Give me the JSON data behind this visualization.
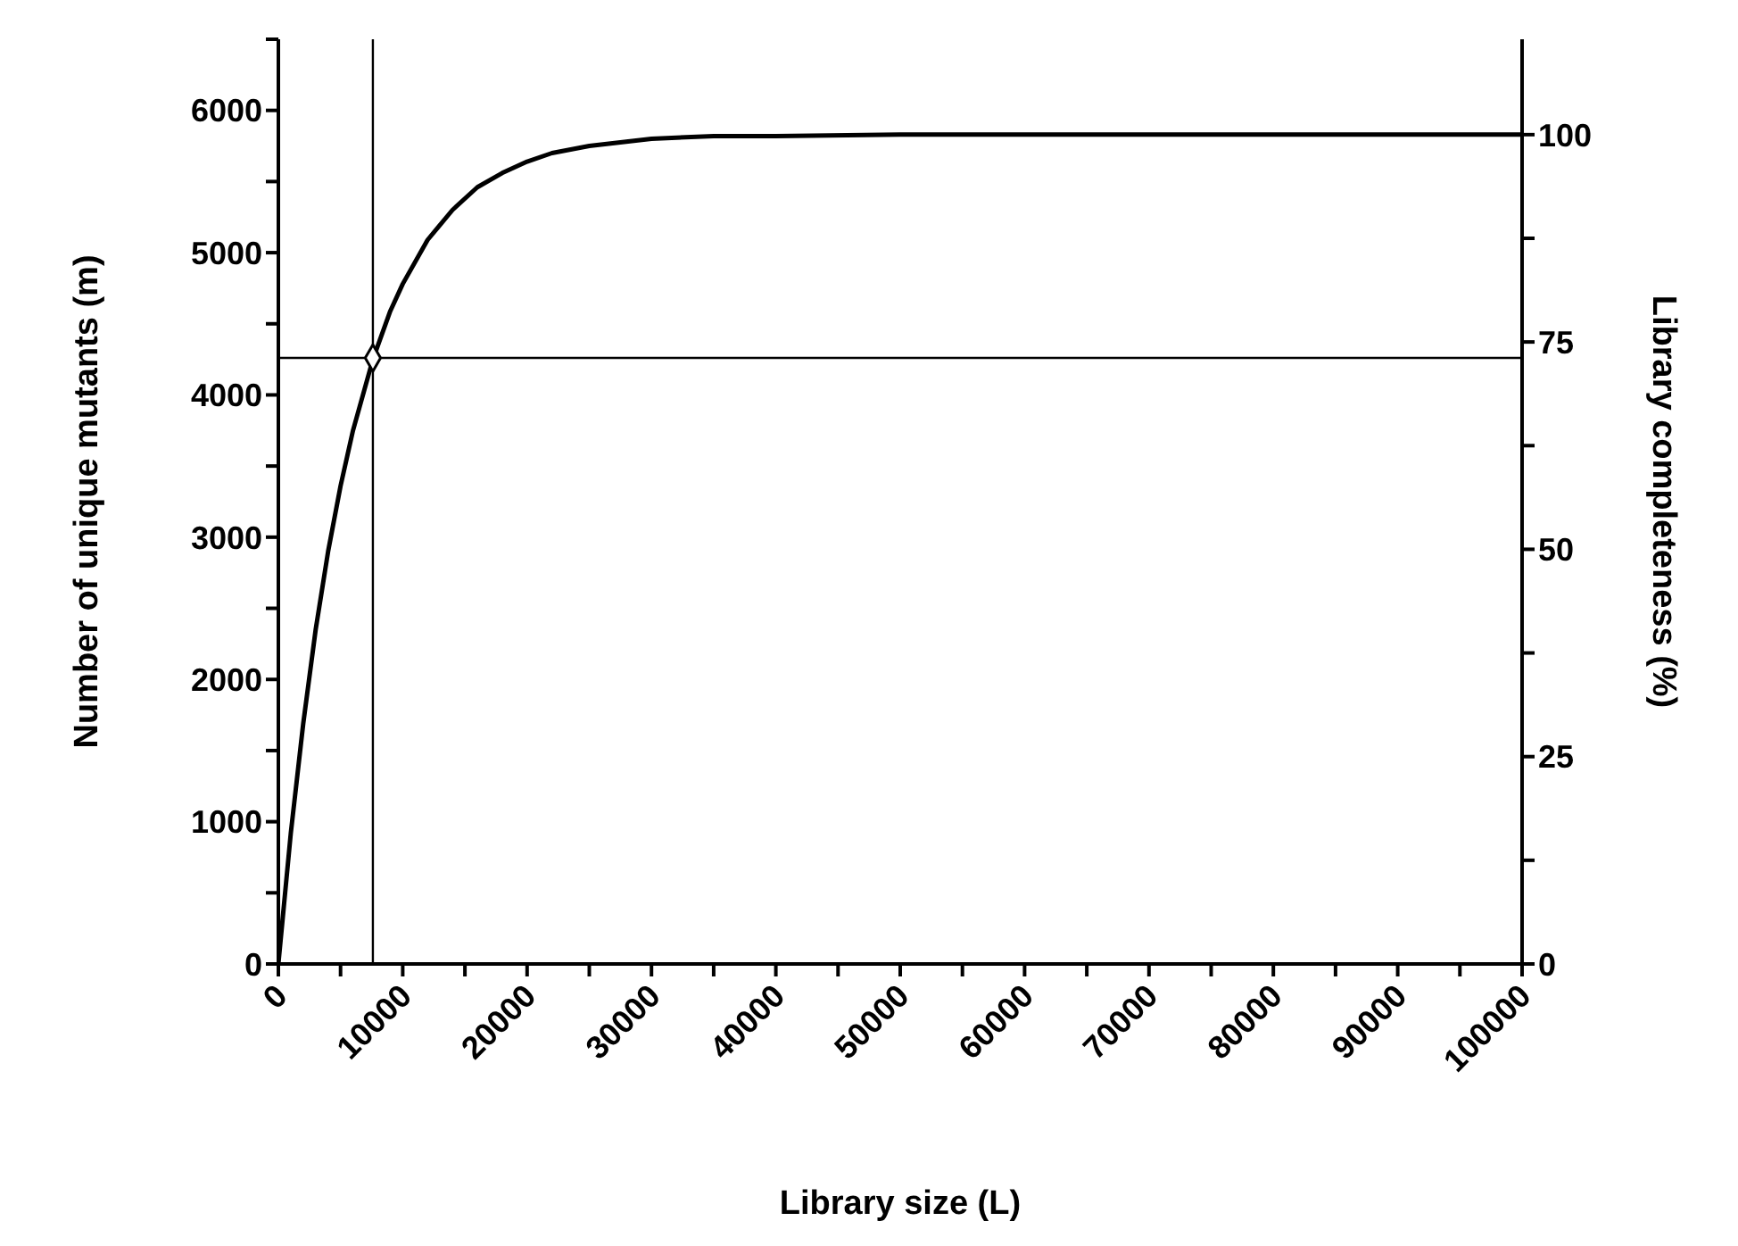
{
  "chart_data": {
    "type": "line",
    "xlabel": "Library size (L)",
    "ylabel": "Number of unique mutants (m)",
    "y2label": "Library completeness (%)",
    "xlim": [
      0,
      100000
    ],
    "ylim": [
      0,
      6500
    ],
    "y2lim": [
      0,
      111.5
    ],
    "xticks": [
      0,
      {
        "value": 5000,
        "label": null
      },
      10000,
      {
        "value": 15000,
        "label": null
      },
      20000,
      {
        "value": 25000,
        "label": null
      },
      30000,
      {
        "value": 35000,
        "label": null
      },
      40000,
      {
        "value": 45000,
        "label": null
      },
      50000,
      {
        "value": 55000,
        "label": null
      },
      60000,
      {
        "value": 65000,
        "label": null
      },
      70000,
      {
        "value": 75000,
        "label": null
      },
      80000,
      {
        "value": 85000,
        "label": null
      },
      90000,
      {
        "value": 95000,
        "label": null
      },
      100000
    ],
    "yticks": [
      0,
      {
        "value": 500,
        "label": null
      },
      1000,
      {
        "value": 1500,
        "label": null
      },
      2000,
      {
        "value": 2500,
        "label": null
      },
      3000,
      {
        "value": 3500,
        "label": null
      },
      4000,
      {
        "value": 4500,
        "label": null
      },
      5000,
      {
        "value": 5500,
        "label": null
      },
      6000,
      {
        "value": 6500,
        "label": null
      }
    ],
    "y2ticks": [
      0,
      {
        "value": 12.5,
        "label": null
      },
      25,
      {
        "value": 37.5,
        "label": null
      },
      50,
      {
        "value": 62.5,
        "label": null
      },
      75,
      {
        "value": 87.5,
        "label": null
      },
      100
    ],
    "grid": false,
    "legend": false,
    "series": [
      {
        "color": "#000000",
        "marker": "none",
        "line_style": "solid",
        "x": [
          0,
          1000,
          2000,
          3000,
          4000,
          5000,
          6000,
          7600,
          9000,
          10000,
          12000,
          14000,
          16000,
          18000,
          20000,
          22000,
          25000,
          30000,
          35000,
          40000,
          50000,
          100000
        ],
        "values": [
          0,
          920,
          1690,
          2350,
          2900,
          3360,
          3750,
          4250,
          4590,
          4780,
          5090,
          5300,
          5460,
          5560,
          5640,
          5700,
          5750,
          5800,
          5820,
          5820,
          5830,
          5830
        ]
      },
      {
        "type": "scatter",
        "color": "#000000",
        "marker": "diamond",
        "x": [
          7600
        ],
        "values": [
          4260
        ]
      }
    ],
    "ref_lines": [
      {
        "axis": "x",
        "value": 7600,
        "color": "#000000"
      },
      {
        "axis": "y",
        "value": 4260,
        "color": "#000000"
      }
    ]
  }
}
